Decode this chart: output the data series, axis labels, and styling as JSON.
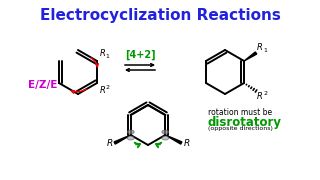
{
  "title": "Electrocyclization Reactions",
  "title_color": "#2222dd",
  "title_fontsize": 11,
  "bg_color": "#ffffff",
  "ezze_label": "E/Z/E",
  "ezze_color": "#cc00cc",
  "ezze_fontsize": 7.5,
  "reaction_label": "[4+2]",
  "reaction_color": "#009900",
  "reaction_fontsize": 7,
  "disrotatory_label": "disrotatory",
  "disrotatory_color": "#009900",
  "disrotatory_fontsize": 8.5,
  "rotation_text": "rotation must be",
  "rotation_fontsize": 5.5,
  "opposite_text": "(opposite directions)",
  "opposite_fontsize": 4.5,
  "figsize": [
    3.2,
    1.8
  ],
  "dpi": 100
}
